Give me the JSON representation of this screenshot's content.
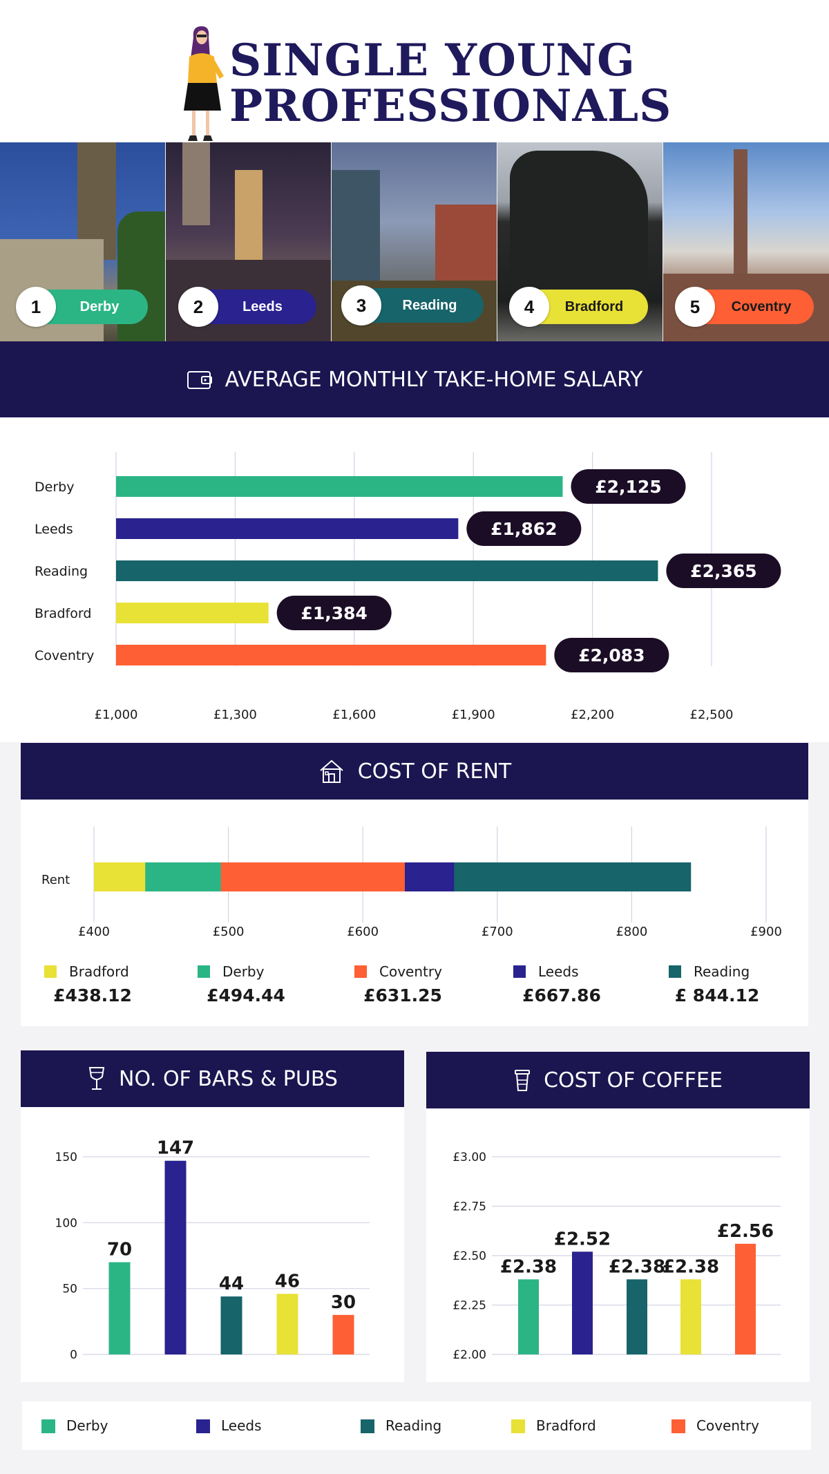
{
  "header": {
    "title_line1": "SINGLE YOUNG",
    "title_line2": "PROFESSIONALS"
  },
  "colors": {
    "Derby": "#2bb585",
    "Leeds": "#29228f",
    "Reading": "#17646a",
    "Bradford": "#e8e136",
    "Coventry": "#fe5f34",
    "navy": "#1b1550",
    "label_bg": "#1c0d26"
  },
  "cities": [
    {
      "rank": "1",
      "name": "Derby"
    },
    {
      "rank": "2",
      "name": "Leeds"
    },
    {
      "rank": "3",
      "name": "Reading"
    },
    {
      "rank": "4",
      "name": "Bradford"
    },
    {
      "rank": "5",
      "name": "Coventry"
    }
  ],
  "sections": {
    "salary": {
      "title": "AVERAGE MONTHLY TAKE-HOME SALARY",
      "icon": "wallet-icon"
    },
    "rent": {
      "title": "COST OF RENT",
      "icon": "house-icon"
    },
    "bars": {
      "title": "NO. OF BARS & PUBS",
      "icon": "wine-glass-icon"
    },
    "coffee": {
      "title": "COST OF COFFEE",
      "icon": "coffee-cup-icon"
    }
  },
  "chart_data": [
    {
      "type": "bar",
      "orientation": "horizontal",
      "categories": [
        "Derby",
        "Leeds",
        "Reading",
        "Bradford",
        "Coventry"
      ],
      "values": [
        2125,
        1862,
        2365,
        1384,
        2083
      ],
      "value_labels": [
        "£2,125",
        "£1,862",
        "£2,365",
        "£1,384",
        "£2,083"
      ],
      "xlim": [
        1000,
        2600
      ],
      "xticks": [
        1000,
        1300,
        1600,
        1900,
        2200,
        2500
      ],
      "xtick_labels": [
        "£1,000",
        "£1,300",
        "£1,600",
        "£1,900",
        "£2,200",
        "£2,500"
      ],
      "grid": true
    },
    {
      "type": "bar",
      "orientation": "horizontal-overlapping",
      "category_label": "Rent",
      "series": [
        {
          "name": "Bradford",
          "value": 438.12,
          "label": "£438.12"
        },
        {
          "name": "Derby",
          "value": 494.44,
          "label": "£494.44"
        },
        {
          "name": "Coventry",
          "value": 631.25,
          "label": "£631.25"
        },
        {
          "name": "Leeds",
          "value": 667.86,
          "label": "£667.86"
        },
        {
          "name": "Reading",
          "value": 844.12,
          "label": "£ 844.12"
        }
      ],
      "xlim": [
        400,
        900
      ],
      "xticks": [
        400,
        500,
        600,
        700,
        800,
        900
      ],
      "xtick_labels": [
        "£400",
        "£500",
        "£600",
        "£700",
        "£800",
        "£900"
      ],
      "grid": true
    },
    {
      "type": "bar",
      "categories": [
        "Derby",
        "Leeds",
        "Reading",
        "Bradford",
        "Coventry"
      ],
      "values": [
        70,
        147,
        44,
        46,
        30
      ],
      "value_labels": [
        "70",
        "147",
        "44",
        "46",
        "30"
      ],
      "ylim": [
        0,
        150
      ],
      "yticks": [
        0,
        50,
        100,
        150
      ],
      "ytick_labels": [
        "0",
        "50",
        "100",
        "150"
      ],
      "grid": true
    },
    {
      "type": "bar",
      "categories": [
        "Derby",
        "Leeds",
        "Reading",
        "Bradford",
        "Coventry"
      ],
      "values": [
        2.38,
        2.52,
        2.38,
        2.38,
        2.56
      ],
      "value_labels": [
        "£2.38",
        "£2.52",
        "£2.38",
        "£2.38",
        "£2.56"
      ],
      "ylim": [
        2.0,
        3.0
      ],
      "yticks": [
        2.0,
        2.25,
        2.5,
        2.75,
        3.0
      ],
      "ytick_labels": [
        "£2.00",
        "£2.25",
        "£2.50",
        "£2.75",
        "£3.00"
      ],
      "grid": true
    }
  ],
  "legend": {
    "items": [
      "Derby",
      "Leeds",
      "Reading",
      "Bradford",
      "Coventry"
    ]
  }
}
